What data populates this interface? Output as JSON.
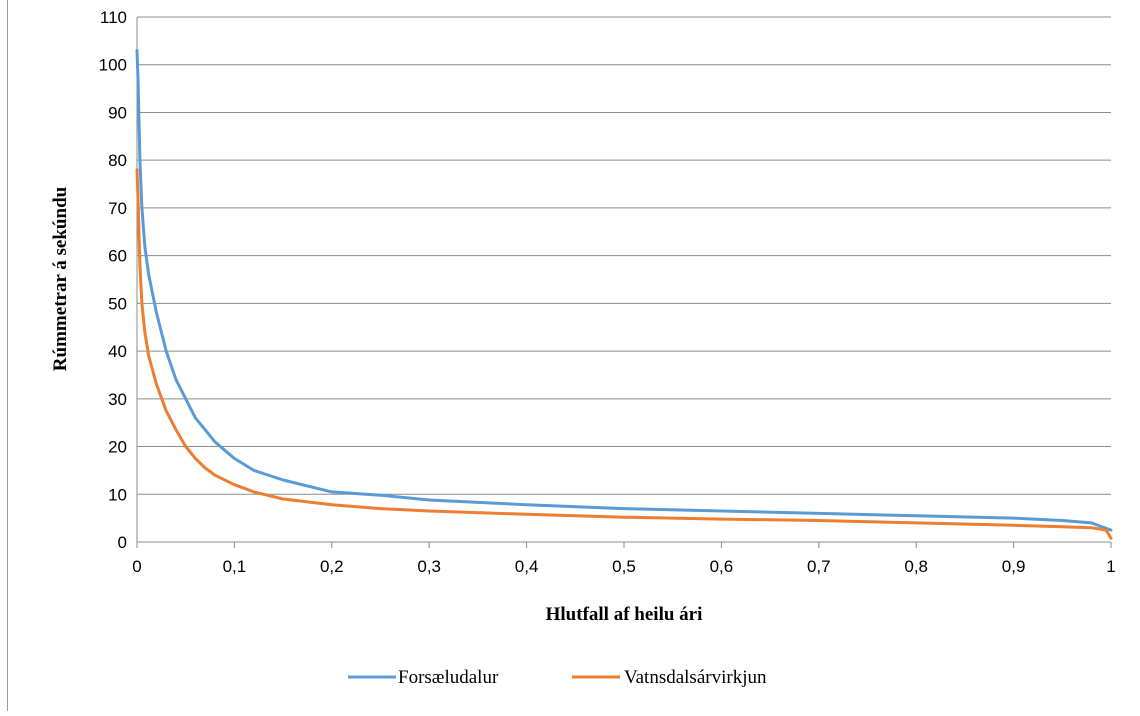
{
  "chart_data": {
    "type": "line",
    "xlabel": "Hlutfall af heilu ári",
    "ylabel": "Rúmmetrar  á sekúndu",
    "xlim": [
      0,
      1
    ],
    "ylim": [
      0,
      110
    ],
    "x_ticks": [
      "0",
      "0,1",
      "0,2",
      "0,3",
      "0,4",
      "0,5",
      "0,6",
      "0,7",
      "0,8",
      "0,9",
      "1"
    ],
    "y_ticks": [
      "0",
      "10",
      "20",
      "30",
      "40",
      "50",
      "60",
      "70",
      "80",
      "90",
      "100",
      "110"
    ],
    "grid": "horizontal",
    "legend_position": "bottom",
    "series": [
      {
        "name": "Forsæludalur",
        "color": "#5B9BD5",
        "x": [
          0,
          0.001,
          0.003,
          0.005,
          0.008,
          0.012,
          0.02,
          0.03,
          0.04,
          0.05,
          0.06,
          0.07,
          0.08,
          0.1,
          0.12,
          0.15,
          0.2,
          0.25,
          0.3,
          0.4,
          0.5,
          0.6,
          0.7,
          0.8,
          0.9,
          0.95,
          0.98,
          1.0
        ],
        "y": [
          103,
          97,
          80,
          70,
          62,
          56,
          48,
          40,
          34,
          30,
          26,
          23.5,
          21,
          17.5,
          15,
          13,
          10.5,
          9.8,
          8.8,
          7.8,
          7,
          6.5,
          6,
          5.5,
          5,
          4.5,
          4,
          2.5
        ]
      },
      {
        "name": "Vatnsdalsárvirkjun",
        "color": "#ED7D31",
        "x": [
          0,
          0.001,
          0.003,
          0.005,
          0.008,
          0.012,
          0.02,
          0.03,
          0.04,
          0.05,
          0.06,
          0.07,
          0.08,
          0.1,
          0.12,
          0.15,
          0.2,
          0.25,
          0.3,
          0.4,
          0.5,
          0.6,
          0.7,
          0.8,
          0.9,
          0.95,
          0.98,
          0.995,
          1.0
        ],
        "y": [
          78,
          72,
          58,
          50,
          44,
          39,
          33,
          27.5,
          23.5,
          20,
          17.5,
          15.5,
          14,
          12,
          10.5,
          9,
          7.8,
          7,
          6.5,
          5.8,
          5.2,
          4.8,
          4.5,
          4,
          3.5,
          3.2,
          3,
          2.5,
          0.8
        ]
      }
    ]
  }
}
